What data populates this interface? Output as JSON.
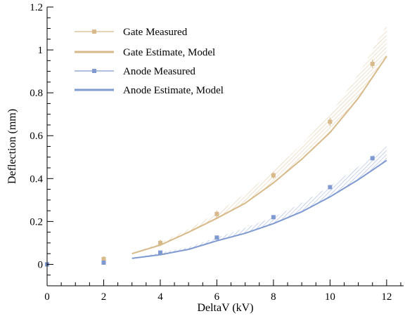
{
  "chart_data": {
    "type": "line",
    "title": "",
    "xlabel": "DeltaV (kV)",
    "ylabel": "Deflection (mm)",
    "xlim": [
      0,
      12.6
    ],
    "ylim": [
      -0.1,
      1.2
    ],
    "xticks": [
      0,
      2,
      4,
      6,
      8,
      10,
      12
    ],
    "yticks": [
      0,
      0.2,
      0.4,
      0.6,
      0.8,
      1,
      1.2
    ],
    "ytick_labels": [
      "0",
      "0.2",
      "0.4",
      "0.6",
      "0.8",
      "1",
      "1.2"
    ],
    "grid": false,
    "legend_position": "top-left",
    "series": [
      {
        "name": "Gate Measured",
        "kind": "points",
        "color": "#d7b98a",
        "x": [
          0,
          2,
          4,
          6,
          8,
          10,
          11.5
        ],
        "y": [
          0.0,
          0.025,
          0.1,
          0.235,
          0.415,
          0.665,
          0.935
        ],
        "yerr": [
          0.005,
          0.012,
          0.015,
          0.015,
          0.015,
          0.02,
          0.02
        ]
      },
      {
        "name": "Gate Estimate, Model",
        "kind": "line_band",
        "color": "#d7b98a",
        "x": [
          3,
          4,
          5,
          6,
          7,
          8,
          9,
          10,
          11,
          12
        ],
        "y": [
          0.05,
          0.09,
          0.15,
          0.215,
          0.285,
          0.38,
          0.49,
          0.615,
          0.775,
          0.97
        ],
        "band_upper": [
          0.05,
          0.1,
          0.165,
          0.24,
          0.33,
          0.435,
          0.56,
          0.7,
          0.885,
          1.115
        ]
      },
      {
        "name": "Anode Measured",
        "kind": "points",
        "color": "#7f99d1",
        "x": [
          0,
          2,
          4,
          6,
          8,
          10,
          11.5
        ],
        "y": [
          0.0,
          0.008,
          0.055,
          0.125,
          0.22,
          0.36,
          0.495
        ],
        "yerr": [
          0.004,
          0.006,
          0.006,
          0.006,
          0.006,
          0.006,
          0.006
        ]
      },
      {
        "name": "Anode Estimate, Model",
        "kind": "line_band",
        "color": "#7f99d1",
        "x": [
          3,
          4,
          5,
          6,
          7,
          8,
          9,
          10,
          11,
          12
        ],
        "y": [
          0.028,
          0.045,
          0.07,
          0.11,
          0.145,
          0.19,
          0.245,
          0.315,
          0.395,
          0.485
        ],
        "band_upper": [
          0.028,
          0.055,
          0.08,
          0.125,
          0.17,
          0.22,
          0.285,
          0.365,
          0.455,
          0.555
        ]
      }
    ]
  }
}
